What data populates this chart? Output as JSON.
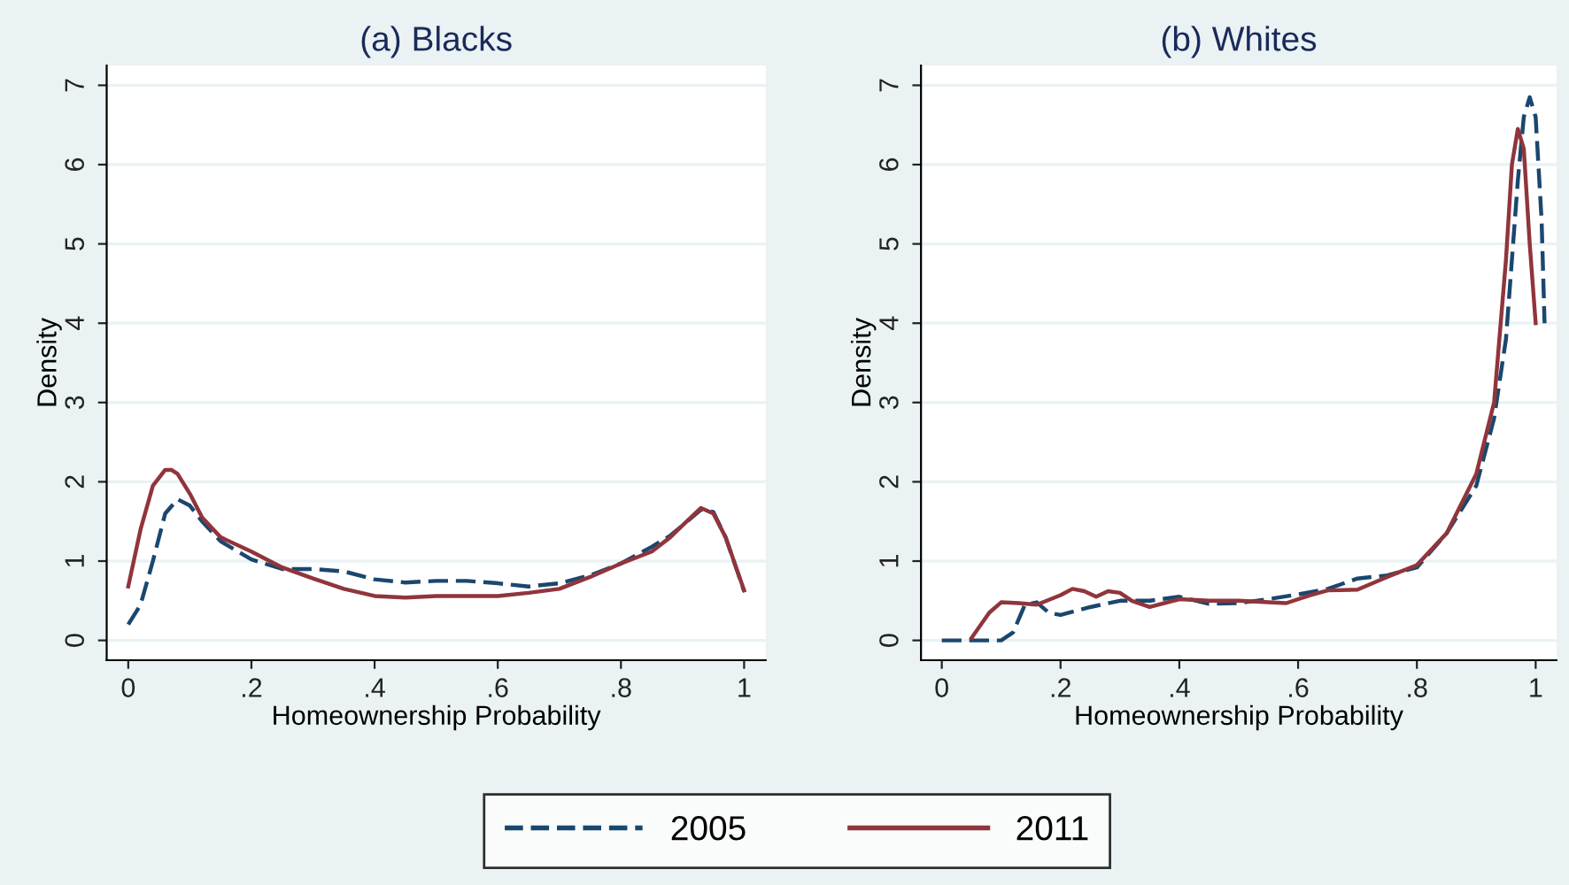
{
  "chart_data": [
    {
      "type": "line",
      "title": "(a) Blacks",
      "xlabel": "Homeownership Probability",
      "ylabel": "Density",
      "xlim": [
        -0.035,
        1.035
      ],
      "ylim": [
        -0.25,
        7.25
      ],
      "xticks": [
        0,
        {
          "value": 0.2,
          "label": ".2"
        },
        {
          "value": 0.4,
          "label": ".4"
        },
        {
          "value": 0.6,
          "label": ".6"
        },
        {
          "value": 0.8,
          "label": ".8"
        },
        1
      ],
      "yticks": [
        0,
        1,
        2,
        3,
        4,
        5,
        6,
        7
      ],
      "grid": "y",
      "legend": "bottom",
      "marker": "none",
      "series": [
        {
          "name": "2005",
          "color": "#1a476f",
          "line_style": "dashed",
          "x": [
            0,
            0.02,
            0.04,
            0.06,
            0.08,
            0.1,
            0.12,
            0.15,
            0.2,
            0.25,
            0.3,
            0.35,
            0.4,
            0.45,
            0.5,
            0.55,
            0.6,
            0.65,
            0.7,
            0.75,
            0.8,
            0.85,
            0.88,
            0.9,
            0.93,
            0.95,
            0.97,
            1.0
          ],
          "values": [
            0.2,
            0.45,
            1.0,
            1.6,
            1.78,
            1.7,
            1.5,
            1.25,
            1.02,
            0.9,
            0.9,
            0.87,
            0.77,
            0.73,
            0.75,
            0.75,
            0.72,
            0.68,
            0.72,
            0.82,
            0.97,
            1.18,
            1.32,
            1.45,
            1.65,
            1.62,
            1.3,
            0.62
          ]
        },
        {
          "name": "2011",
          "color": "#90353b",
          "line_style": "solid",
          "x": [
            0,
            0.02,
            0.04,
            0.06,
            0.07,
            0.08,
            0.1,
            0.12,
            0.15,
            0.2,
            0.25,
            0.3,
            0.35,
            0.4,
            0.45,
            0.5,
            0.55,
            0.6,
            0.65,
            0.7,
            0.75,
            0.8,
            0.85,
            0.88,
            0.9,
            0.93,
            0.95,
            0.97,
            1.0
          ],
          "values": [
            0.68,
            1.4,
            1.95,
            2.15,
            2.15,
            2.1,
            1.85,
            1.55,
            1.3,
            1.12,
            0.92,
            0.78,
            0.65,
            0.56,
            0.54,
            0.56,
            0.56,
            0.56,
            0.6,
            0.65,
            0.8,
            0.97,
            1.12,
            1.3,
            1.45,
            1.67,
            1.6,
            1.3,
            0.63
          ]
        }
      ]
    },
    {
      "type": "line",
      "title": "(b) Whites",
      "xlabel": "Homeownership Probability",
      "ylabel": "Density",
      "xlim": [
        -0.035,
        1.035
      ],
      "ylim": [
        -0.25,
        7.25
      ],
      "xticks": [
        0,
        {
          "value": 0.2,
          "label": ".2"
        },
        {
          "value": 0.4,
          "label": ".4"
        },
        {
          "value": 0.6,
          "label": ".6"
        },
        {
          "value": 0.8,
          "label": ".8"
        },
        1
      ],
      "yticks": [
        0,
        1,
        2,
        3,
        4,
        5,
        6,
        7
      ],
      "grid": "y",
      "marker": "none",
      "series": [
        {
          "name": "2005",
          "color": "#1a476f",
          "line_style": "dashed",
          "x": [
            0,
            0.05,
            0.1,
            0.12,
            0.14,
            0.16,
            0.18,
            0.2,
            0.25,
            0.3,
            0.35,
            0.4,
            0.45,
            0.5,
            0.55,
            0.6,
            0.65,
            0.7,
            0.75,
            0.8,
            0.85,
            0.9,
            0.93,
            0.95,
            0.96,
            0.97,
            0.98,
            0.99,
            1.0,
            1.01,
            1.015
          ],
          "values": [
            0,
            0,
            0,
            0.1,
            0.45,
            0.48,
            0.35,
            0.32,
            0.42,
            0.5,
            0.5,
            0.55,
            0.46,
            0.47,
            0.52,
            0.58,
            0.65,
            0.78,
            0.82,
            0.92,
            1.35,
            1.95,
            2.8,
            3.8,
            4.8,
            5.8,
            6.6,
            6.85,
            6.6,
            5.3,
            4.0
          ]
        },
        {
          "name": "2011",
          "color": "#90353b",
          "line_style": "solid",
          "x": [
            0.05,
            0.08,
            0.1,
            0.13,
            0.16,
            0.2,
            0.22,
            0.24,
            0.26,
            0.28,
            0.3,
            0.32,
            0.35,
            0.4,
            0.45,
            0.5,
            0.55,
            0.58,
            0.62,
            0.65,
            0.7,
            0.75,
            0.8,
            0.85,
            0.9,
            0.93,
            0.95,
            0.96,
            0.97,
            0.98,
            0.99,
            1.0
          ],
          "values": [
            0.03,
            0.35,
            0.48,
            0.47,
            0.45,
            0.57,
            0.65,
            0.62,
            0.55,
            0.62,
            0.6,
            0.5,
            0.42,
            0.52,
            0.5,
            0.5,
            0.48,
            0.47,
            0.57,
            0.63,
            0.64,
            0.8,
            0.95,
            1.35,
            2.1,
            3.0,
            4.8,
            6.0,
            6.45,
            6.2,
            5.0,
            4.0
          ]
        }
      ]
    }
  ]
}
